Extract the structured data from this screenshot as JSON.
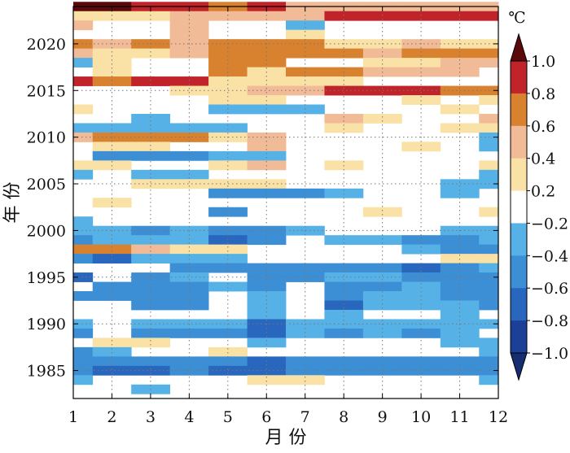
{
  "chart_data": {
    "type": "heatmap",
    "xlabel": "月 份",
    "ylabel": "年 份",
    "colorbar_unit": "℃",
    "x_ticks": [
      1,
      2,
      3,
      4,
      5,
      6,
      7,
      8,
      9,
      10,
      11,
      12
    ],
    "y_ticks": [
      1985,
      1990,
      1995,
      2000,
      2005,
      2010,
      2015,
      2020
    ],
    "xlim": [
      1,
      12
    ],
    "ylim": [
      1982,
      2024
    ],
    "grid": true,
    "years": [
      2024,
      2023,
      2022,
      2021,
      2020,
      2019,
      2018,
      2017,
      2016,
      2015,
      2014,
      2013,
      2012,
      2011,
      2010,
      2009,
      2008,
      2007,
      2006,
      2005,
      2004,
      2003,
      2002,
      2001,
      2000,
      1999,
      1998,
      1997,
      1996,
      1995,
      1994,
      1993,
      1992,
      1991,
      1990,
      1989,
      1988,
      1987,
      1986,
      1985,
      1984,
      1983
    ],
    "colorbar": {
      "ticks": [
        "1.0",
        "0.8",
        "0.6",
        "0.4",
        "0.2",
        "−0.2",
        "−0.4",
        "−0.6",
        "−0.8",
        "−1.0"
      ],
      "levels": [
        {
          "lo": 0.8,
          "hi": 1.0,
          "color": "#c1232b"
        },
        {
          "lo": 0.6,
          "hi": 0.8,
          "color": "#d8812f"
        },
        {
          "lo": 0.4,
          "hi": 0.6,
          "color": "#f0bb96"
        },
        {
          "lo": 0.2,
          "hi": 0.4,
          "color": "#fae1a6"
        },
        {
          "lo": -0.2,
          "hi": 0.2,
          "color": "#ffffff"
        },
        {
          "lo": -0.4,
          "hi": -0.2,
          "color": "#56b2e6"
        },
        {
          "lo": -0.6,
          "hi": -0.4,
          "color": "#3d8fd5"
        },
        {
          "lo": -0.8,
          "hi": -0.6,
          "color": "#2867bd"
        },
        {
          "lo": -1.0,
          "hi": -0.8,
          "color": "#1c3f97"
        }
      ],
      "over_color": "#5a0a0a",
      "under_color": "#162d72"
    },
    "values": [
      [
        1.1,
        1.1,
        0.9,
        0.9,
        0.7,
        0.9,
        0.5,
        0.5,
        0.5,
        0.5,
        0.5,
        0.5
      ],
      [
        0.3,
        0.3,
        0.3,
        0.5,
        0.5,
        0.5,
        0.5,
        0.9,
        0.9,
        0.9,
        0.9,
        0.9
      ],
      [
        0.5,
        0,
        0,
        0.5,
        0,
        0,
        -0.3,
        0,
        0,
        0,
        0,
        0
      ],
      [
        0,
        0,
        0,
        0.5,
        0,
        0,
        0.3,
        0,
        0,
        0,
        0,
        0
      ],
      [
        0.7,
        0.5,
        0.7,
        0.5,
        0.7,
        0.7,
        0.7,
        0.3,
        0.3,
        0.5,
        0.3,
        0.3
      ],
      [
        0.5,
        0.3,
        0.3,
        0.5,
        0.7,
        0.7,
        0.7,
        0.7,
        0.5,
        0.7,
        0.7,
        0.7
      ],
      [
        -0.3,
        0.3,
        0,
        0,
        0.7,
        0.7,
        0,
        0,
        0.3,
        0.3,
        0.5,
        0.5
      ],
      [
        0,
        0.3,
        0,
        0,
        0.7,
        0.3,
        0.7,
        0.7,
        0.5,
        0.5,
        0.5,
        0
      ],
      [
        0.9,
        0.7,
        0.9,
        0.9,
        0.3,
        0.3,
        0.3,
        0.3,
        0,
        0,
        0,
        0
      ],
      [
        0,
        0,
        0,
        0.3,
        0.3,
        0.5,
        0.5,
        0.9,
        0.9,
        0.9,
        0.7,
        0.7
      ],
      [
        0,
        0,
        0,
        0,
        0.3,
        0.3,
        0,
        0,
        0,
        0.3,
        0,
        0.3
      ],
      [
        0.3,
        0,
        0,
        0,
        -0.3,
        -0.3,
        -0.3,
        0,
        0,
        0,
        0.3,
        0
      ],
      [
        0,
        0,
        -0.3,
        0,
        0,
        0,
        0,
        0.5,
        0.3,
        0,
        0,
        0.5
      ],
      [
        -0.3,
        -0.3,
        -0.3,
        -0.3,
        -0.3,
        0,
        0,
        0.3,
        0,
        0,
        0.3,
        0.3
      ],
      [
        0.5,
        0.7,
        0.7,
        0.7,
        0.3,
        0.5,
        0,
        0,
        0,
        0,
        0,
        -0.3
      ],
      [
        0,
        0.3,
        0.3,
        0,
        0,
        0.5,
        0,
        0,
        0,
        0.3,
        0,
        -0.4
      ],
      [
        0,
        -0.5,
        -0.5,
        -0.5,
        -0.3,
        -0.3,
        0,
        0,
        0,
        0,
        0,
        0
      ],
      [
        0.3,
        0.3,
        0,
        0,
        0.3,
        0.5,
        0,
        0.3,
        0,
        0,
        0,
        0.3
      ],
      [
        -0.3,
        0,
        -0.3,
        -0.3,
        0,
        0,
        0,
        0,
        0,
        0,
        0,
        -0.3
      ],
      [
        0,
        0,
        0.3,
        0.3,
        0.3,
        0.3,
        0,
        0,
        0,
        0,
        -0.3,
        -0.3
      ],
      [
        0,
        0,
        0,
        0,
        -0.5,
        -0.5,
        -0.5,
        -0.3,
        0,
        0,
        -0.3,
        0
      ],
      [
        0,
        0.3,
        0,
        0,
        0,
        0,
        0,
        0,
        0,
        0,
        0,
        0
      ],
      [
        0,
        0,
        0,
        0,
        -0.5,
        0,
        0,
        0,
        0.3,
        0,
        0,
        0.3
      ],
      [
        -0.3,
        0,
        0,
        0,
        0,
        0,
        0,
        0,
        0,
        0,
        0,
        0
      ],
      [
        -0.3,
        -0.3,
        -0.5,
        -0.3,
        -0.5,
        -0.5,
        -0.3,
        0,
        0,
        0,
        -0.3,
        -0.3
      ],
      [
        -0.5,
        -0.3,
        -0.3,
        -0.3,
        -0.7,
        -0.5,
        0,
        -0.3,
        -0.3,
        -0.5,
        -0.5,
        -0.3
      ],
      [
        0.7,
        0.7,
        0.5,
        0.3,
        0.3,
        0,
        0,
        0,
        0,
        -0.3,
        -0.5,
        -0.5
      ],
      [
        -0.5,
        -0.7,
        -0.3,
        -0.3,
        -0.3,
        0,
        0,
        0,
        0,
        0,
        0.3,
        0.3
      ],
      [
        0,
        0,
        0,
        -0.5,
        -0.5,
        -0.5,
        -0.5,
        -0.5,
        -0.5,
        -0.7,
        -0.5,
        -0.3
      ],
      [
        -0.7,
        0,
        -0.5,
        -0.3,
        0,
        -0.5,
        -0.5,
        -0.3,
        -0.3,
        -0.5,
        -0.5,
        -0.5
      ],
      [
        0,
        -0.5,
        -0.5,
        -0.5,
        -0.3,
        -0.5,
        0,
        -0.5,
        -0.5,
        -0.3,
        -0.5,
        -0.5
      ],
      [
        -0.5,
        -0.5,
        -0.5,
        -0.5,
        0,
        -0.3,
        0,
        -0.5,
        -0.3,
        -0.3,
        -0.5,
        -0.5
      ],
      [
        0,
        0,
        -0.5,
        -0.5,
        0,
        -0.3,
        0,
        -0.7,
        -0.3,
        -0.3,
        -0.3,
        -0.5
      ],
      [
        0,
        0,
        0,
        0,
        0,
        -0.3,
        0,
        -0.3,
        0,
        0,
        -0.3,
        0
      ],
      [
        -0.3,
        0,
        -0.3,
        -0.3,
        -0.3,
        -0.7,
        -0.3,
        -0.3,
        -0.3,
        -0.3,
        -0.3,
        -0.3
      ],
      [
        -0.5,
        0,
        -0.5,
        -0.5,
        -0.5,
        -0.7,
        -0.3,
        -0.5,
        -0.3,
        -0.5,
        -0.3,
        0
      ],
      [
        0,
        0.3,
        0.3,
        0,
        0,
        -0.3,
        0,
        0,
        0,
        0,
        -0.3,
        -0.3
      ],
      [
        -0.5,
        -0.3,
        0,
        0,
        0.3,
        0,
        0,
        0,
        0,
        0,
        0,
        -0.3
      ],
      [
        -0.5,
        -0.5,
        -0.5,
        -0.5,
        -0.5,
        -0.7,
        -0.5,
        -0.5,
        -0.5,
        -0.5,
        -0.5,
        -0.5
      ],
      [
        -0.5,
        -0.7,
        -0.7,
        -0.5,
        -0.7,
        -0.7,
        -0.5,
        -0.5,
        -0.5,
        -0.5,
        -0.5,
        -0.5
      ],
      [
        -0.3,
        0,
        0,
        0,
        0,
        0.3,
        0.3,
        0,
        0,
        0,
        0,
        -0.3
      ],
      [
        0,
        0,
        -0.3,
        0,
        0,
        0,
        0,
        0,
        0,
        0,
        0,
        0
      ]
    ]
  }
}
